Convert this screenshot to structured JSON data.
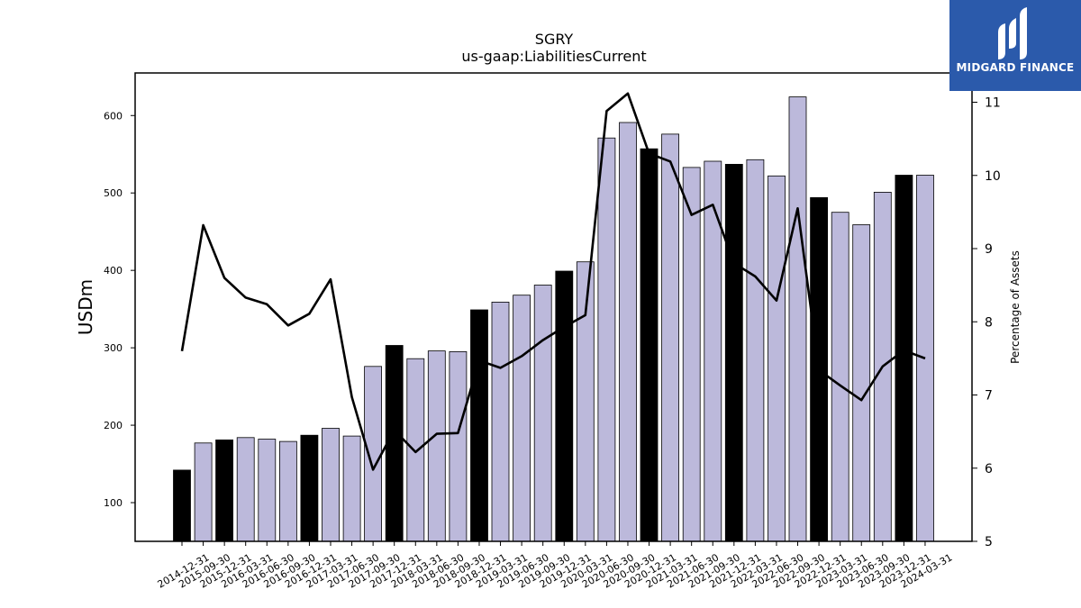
{
  "chart_data": {
    "type": "bar",
    "title": "SGRY",
    "subtitle": "us-gaap:LiabilitiesCurrent",
    "ylabel": "USDm",
    "y2label": "Percentage of Assets",
    "ylim": [
      50,
      655
    ],
    "y2lim": [
      5,
      11.4
    ],
    "yticks": [
      100,
      200,
      300,
      400,
      500,
      600
    ],
    "y2ticks": [
      5,
      6,
      7,
      8,
      9,
      10,
      11
    ],
    "categories": [
      "2014-12-31",
      "2015-09-30",
      "2015-12-31",
      "2016-03-31",
      "2016-06-30",
      "2016-09-30",
      "2016-12-31",
      "2017-03-31",
      "2017-06-30",
      "2017-09-30",
      "2017-12-31",
      "2018-03-31",
      "2018-06-30",
      "2018-09-30",
      "2018-12-31",
      "2019-03-31",
      "2019-06-30",
      "2019-09-30",
      "2019-12-31",
      "2020-03-31",
      "2020-06-30",
      "2020-09-30",
      "2020-12-31",
      "2021-03-31",
      "2021-06-30",
      "2021-09-30",
      "2021-12-31",
      "2022-03-31",
      "2022-06-30",
      "2022-09-30",
      "2022-12-31",
      "2023-03-31",
      "2023-06-30",
      "2023-09-30",
      "2023-12-31",
      "2024-03-31"
    ],
    "series": [
      {
        "values": [
          142,
          177,
          181,
          184,
          182,
          179,
          187,
          196,
          186,
          276,
          303,
          286,
          296,
          295,
          349,
          359,
          368,
          381,
          399,
          411,
          571,
          591,
          557,
          576,
          533,
          541,
          537,
          543,
          522,
          624,
          494,
          475,
          459,
          501,
          523,
          523
        ],
        "highlight": [
          true,
          false,
          true,
          false,
          false,
          false,
          true,
          false,
          false,
          false,
          true,
          false,
          false,
          false,
          true,
          false,
          false,
          false,
          true,
          false,
          false,
          false,
          true,
          false,
          false,
          false,
          true,
          false,
          false,
          false,
          true,
          false,
          false,
          false,
          true,
          false
        ]
      },
      {
        "axis": "secondary",
        "type": "line",
        "values": [
          7.6,
          9.32,
          8.6,
          8.33,
          8.24,
          7.95,
          8.11,
          8.58,
          6.97,
          5.98,
          6.52,
          6.22,
          6.47,
          6.48,
          7.47,
          7.37,
          7.53,
          7.75,
          7.93,
          8.09,
          10.88,
          11.12,
          10.3,
          10.19,
          9.46,
          9.6,
          8.8,
          8.62,
          8.29,
          9.55,
          7.34,
          7.13,
          6.93,
          7.39,
          7.61,
          7.5
        ]
      }
    ],
    "colors": {
      "bar": "#bcb9db",
      "bar_highlight": "#000000",
      "line": "#000000",
      "axis": "#000000"
    }
  },
  "logo": {
    "text": "MIDGARD FINANCE",
    "background": "#2b5aab"
  }
}
